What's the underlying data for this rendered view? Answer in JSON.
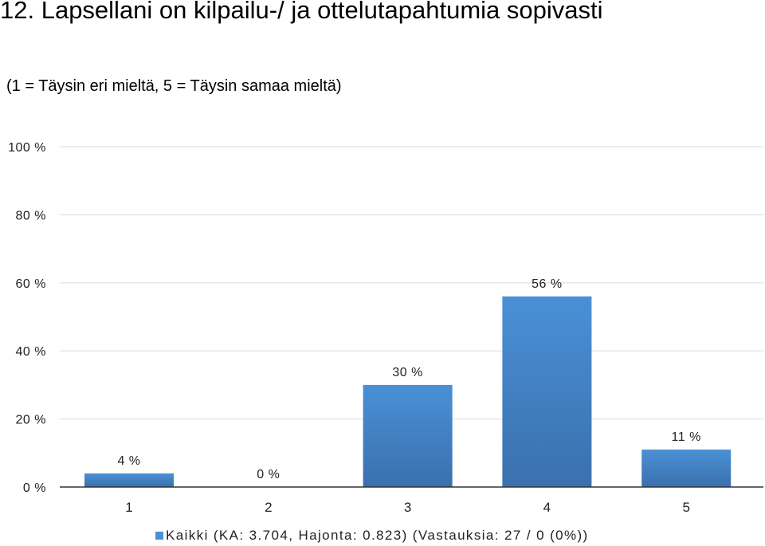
{
  "title": "12. Lapsellani on kilpailu-/ ja ottelutapahtumia sopivasti",
  "subtitle": "(1 = Täysin eri mieltä, 5 = Täysin samaa mieltä)",
  "legend": {
    "label": "Kaikki (KA: 3.704, Hajonta: 0.823) (Vastauksia: 27 / 0 (0%))"
  },
  "colors": {
    "bar_top": "#4a90d6",
    "bar_bottom": "#3a70ad",
    "grid": "#e6e6e6",
    "axis": "#333333"
  },
  "chart_data": {
    "type": "bar",
    "categories": [
      "1",
      "2",
      "3",
      "4",
      "5"
    ],
    "series": [
      {
        "name": "Kaikki (KA: 3.704, Hajonta: 0.823) (Vastauksia: 27 / 0 (0%))",
        "values": [
          4,
          0,
          30,
          56,
          11
        ]
      }
    ],
    "data_labels": [
      "4 %",
      "0 %",
      "30 %",
      "56 %",
      "11 %"
    ],
    "y_ticks": [
      "0 %",
      "20 %",
      "40 %",
      "60 %",
      "80 %",
      "100 %"
    ],
    "y_tick_values": [
      0,
      20,
      40,
      60,
      80,
      100
    ],
    "ylim": [
      0,
      100
    ],
    "grid": true,
    "legend_position": "bottom"
  }
}
